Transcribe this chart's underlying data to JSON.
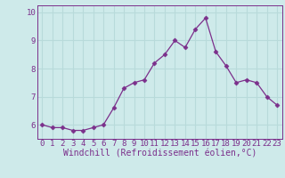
{
  "x": [
    0,
    1,
    2,
    3,
    4,
    5,
    6,
    7,
    8,
    9,
    10,
    11,
    12,
    13,
    14,
    15,
    16,
    17,
    18,
    19,
    20,
    21,
    22,
    23
  ],
  "y": [
    6.0,
    5.9,
    5.9,
    5.8,
    5.8,
    5.9,
    6.0,
    6.6,
    7.3,
    7.5,
    7.6,
    8.2,
    8.5,
    9.0,
    8.75,
    9.4,
    9.8,
    8.6,
    8.1,
    7.5,
    7.6,
    7.5,
    7.0,
    6.7
  ],
  "xlim": [
    -0.5,
    23.5
  ],
  "ylim": [
    5.5,
    10.25
  ],
  "yticks": [
    6,
    7,
    8,
    9,
    10
  ],
  "xticks": [
    0,
    1,
    2,
    3,
    4,
    5,
    6,
    7,
    8,
    9,
    10,
    11,
    12,
    13,
    14,
    15,
    16,
    17,
    18,
    19,
    20,
    21,
    22,
    23
  ],
  "xlabel": "Windchill (Refroidissement éolien,°C)",
  "line_color": "#7b2f8b",
  "marker": "D",
  "marker_size": 2.5,
  "bg_color": "#ceeaea",
  "grid_color": "#b8dada",
  "tick_label_fontsize": 6.5,
  "xlabel_fontsize": 7,
  "title": ""
}
